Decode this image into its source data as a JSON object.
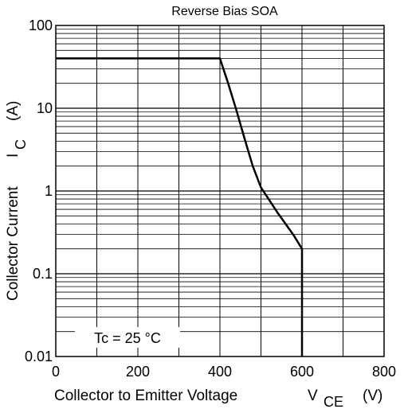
{
  "chart_data": {
    "type": "line",
    "title": "Reverse Bias SOA",
    "xlabel": {
      "main": "Collector to Emitter Voltage",
      "symbol": "V",
      "subscript": "CE",
      "unit": "(V)"
    },
    "ylabel": {
      "main": "Collector Current",
      "symbol": "I",
      "subscript": "C",
      "unit": "(A)"
    },
    "xlim": [
      0,
      800
    ],
    "ylim": [
      0.01,
      100
    ],
    "yscale": "log",
    "grid": true,
    "x_ticks": [
      {
        "value": 0,
        "label": "0"
      },
      {
        "value": 200,
        "label": "200"
      },
      {
        "value": 400,
        "label": "400"
      },
      {
        "value": 600,
        "label": "600"
      },
      {
        "value": 800,
        "label": "800"
      }
    ],
    "y_ticks": [
      {
        "value": 0.01,
        "label": "0.01"
      },
      {
        "value": 0.1,
        "label": "0.1"
      },
      {
        "value": 1,
        "label": "1"
      },
      {
        "value": 10,
        "label": "10"
      },
      {
        "value": 100,
        "label": "100"
      }
    ],
    "annotation": "Tc = 25 °C",
    "series": [
      {
        "points": [
          [
            0,
            40
          ],
          [
            400,
            40
          ],
          [
            420,
            20
          ],
          [
            440,
            9.5
          ],
          [
            460,
            4.3
          ],
          [
            480,
            2.0
          ],
          [
            500,
            1.1
          ],
          [
            520,
            0.78
          ],
          [
            540,
            0.55
          ],
          [
            560,
            0.4
          ],
          [
            580,
            0.29
          ],
          [
            600,
            0.2
          ],
          [
            600,
            0.01
          ]
        ]
      }
    ]
  }
}
